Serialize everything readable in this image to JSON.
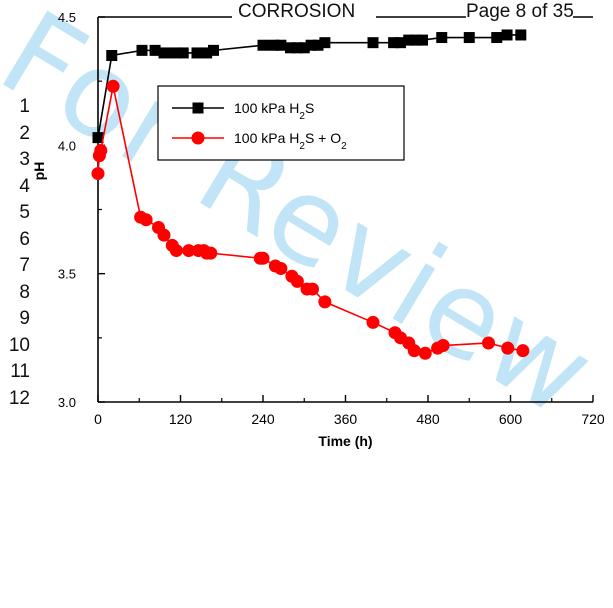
{
  "page_header": {
    "title": "CORROSION",
    "page_label": "Page 8 of 35"
  },
  "line_numbers": [
    "1",
    "2",
    "3",
    "4",
    "5",
    "6",
    "7",
    "8",
    "9",
    "10",
    "11",
    "12"
  ],
  "watermark": {
    "text": "For Review Only",
    "color": "#8fd0f2"
  },
  "chart_data": {
    "type": "line",
    "title": "",
    "xlabel": "Time (h)",
    "ylabel": "pH",
    "xlim": [
      0,
      720
    ],
    "ylim": [
      3.0,
      4.5
    ],
    "xticks": [
      0,
      120,
      240,
      360,
      480,
      600,
      720
    ],
    "yticks": [
      3.0,
      3.5,
      4.0,
      4.5
    ],
    "ytick_labels": [
      "3.0",
      "3.5",
      "4.0",
      "4.5"
    ],
    "grid": false,
    "legend_position": "top-left",
    "series": [
      {
        "name": "100 kPa H2S",
        "legend": {
          "prefix": "100 kPa H",
          "sub": "2",
          "suffix": "S"
        },
        "color": "#000000",
        "marker": "square",
        "x": [
          0,
          20,
          64,
          83,
          96,
          112,
          124,
          144,
          158,
          168,
          240,
          256,
          266,
          280,
          290,
          300,
          310,
          320,
          330,
          400,
          430,
          440,
          452,
          462,
          472,
          500,
          540,
          580,
          595,
          615
        ],
        "y": [
          4.03,
          4.35,
          4.37,
          4.37,
          4.36,
          4.36,
          4.36,
          4.36,
          4.36,
          4.37,
          4.39,
          4.39,
          4.39,
          4.38,
          4.38,
          4.38,
          4.39,
          4.39,
          4.4,
          4.4,
          4.4,
          4.4,
          4.41,
          4.41,
          4.41,
          4.42,
          4.42,
          4.42,
          4.43,
          4.43
        ]
      },
      {
        "name": "100 kPa H2S + O2",
        "legend": {
          "prefix": "100 kPa H",
          "sub": "2",
          "suffix": "S + O",
          "sub2": "2"
        },
        "color": "#ff0000",
        "marker": "circle",
        "x": [
          0,
          2,
          4,
          22,
          62,
          70,
          88,
          96,
          108,
          114,
          132,
          146,
          154,
          158,
          164,
          236,
          240,
          258,
          266,
          282,
          290,
          304,
          312,
          330,
          400,
          432,
          440,
          452,
          460,
          476,
          494,
          502,
          568,
          596,
          618
        ],
        "y": [
          3.89,
          3.96,
          3.98,
          4.23,
          3.72,
          3.71,
          3.68,
          3.65,
          3.61,
          3.59,
          3.59,
          3.59,
          3.59,
          3.58,
          3.58,
          3.56,
          3.56,
          3.53,
          3.52,
          3.49,
          3.47,
          3.44,
          3.44,
          3.39,
          3.31,
          3.27,
          3.25,
          3.23,
          3.2,
          3.19,
          3.21,
          3.22,
          3.23,
          3.21,
          3.2
        ]
      }
    ]
  }
}
